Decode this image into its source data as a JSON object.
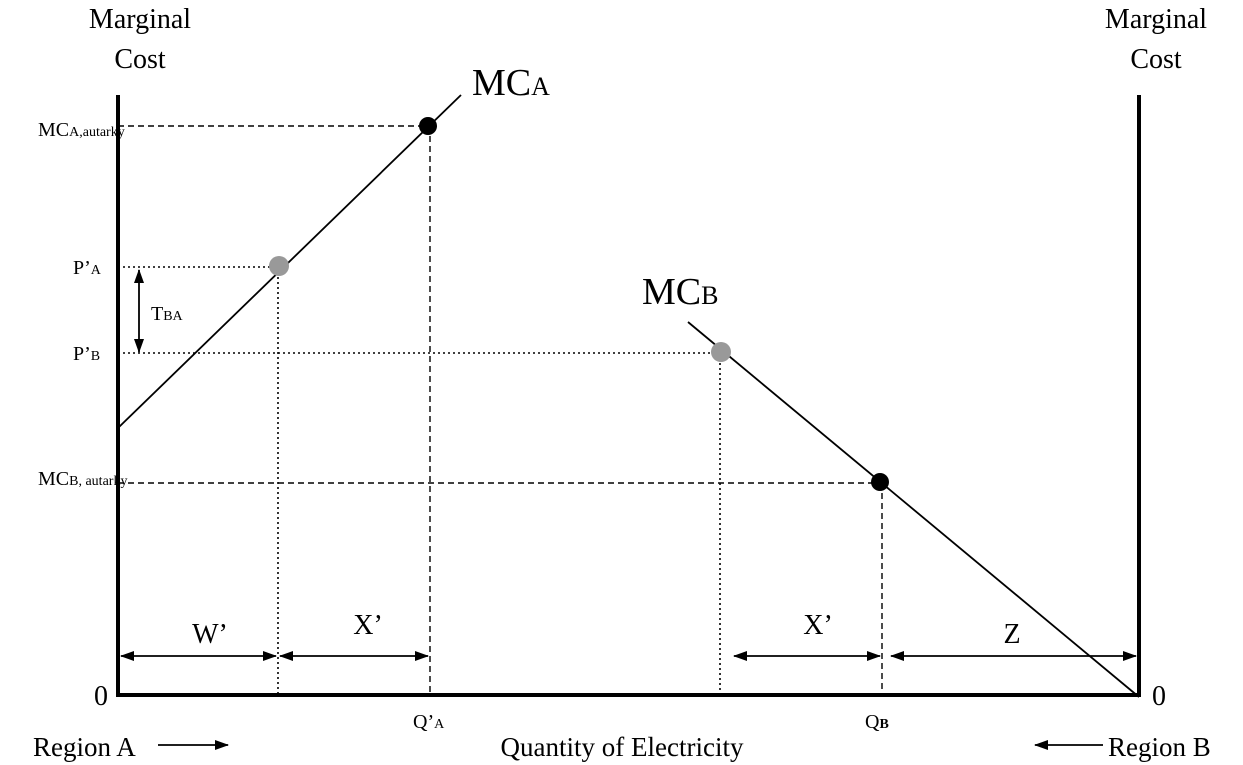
{
  "axes": {
    "left_title_line1": "Marginal",
    "left_title_line2": "Cost",
    "right_title_line1": "Marginal",
    "right_title_line2": "Cost",
    "left_zero": "0",
    "right_zero": "0",
    "x_title": "Quantity of Electricity"
  },
  "regions": {
    "a": "Region A",
    "b": "Region B"
  },
  "curves": {
    "mc_a": {
      "main": "MC",
      "sub": "A"
    },
    "mc_b": {
      "main": "MC",
      "sub": "B"
    }
  },
  "price_labels": {
    "mc_a_autarky": {
      "main": "MC",
      "sub": "A,autarky"
    },
    "p_a": {
      "main": "P’",
      "sub": "A"
    },
    "p_b": {
      "main": "P’",
      "sub": "B"
    },
    "mc_b_autarky": {
      "main": "MC",
      "sub": "B, autarky"
    }
  },
  "transport": {
    "main": "T",
    "sub": "BA"
  },
  "quantity_labels": {
    "q_a": {
      "main": "Q’",
      "sub": "A"
    },
    "q_b": {
      "main": "Q",
      "sub": "B"
    }
  },
  "segments": {
    "w_prime": "W’",
    "x_prime_left": "X’",
    "x_prime_right": "X’",
    "z": "Z"
  },
  "colors": {
    "autarky_point": "#000000",
    "trade_point": "#999999"
  }
}
